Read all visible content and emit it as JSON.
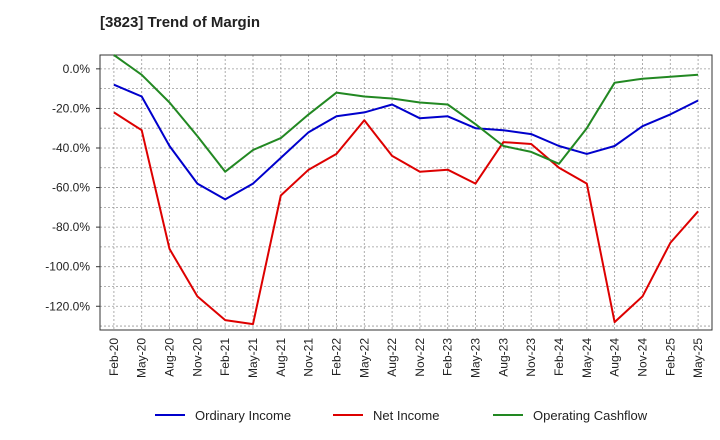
{
  "chart_data": {
    "type": "line",
    "title": "[3823]  Trend of Margin",
    "xlabel": "",
    "ylabel": "",
    "ylim": [
      -132,
      7
    ],
    "y_ticks": [
      0,
      -20,
      -40,
      -60,
      -80,
      -100,
      -120
    ],
    "y_tick_labels": [
      "0.0%",
      "-20.0%",
      "-40.0%",
      "-60.0%",
      "-80.0%",
      "-100.0%",
      "-120.0%"
    ],
    "x_tick_labels": [
      "Feb-20",
      "May-20",
      "Aug-20",
      "Nov-20",
      "Feb-21",
      "May-21",
      "Aug-21",
      "Nov-21",
      "Feb-22",
      "May-22",
      "Aug-22",
      "Nov-22",
      "Feb-23",
      "May-23",
      "Aug-23",
      "Nov-23",
      "Feb-24",
      "May-24",
      "Aug-24",
      "Nov-24",
      "Feb-25",
      "May-25"
    ],
    "grid": true,
    "legend": "bottom",
    "series": [
      {
        "name": "Ordinary Income",
        "color": "#0000cc",
        "values": [
          -8,
          -14,
          -39,
          -58,
          -66,
          -58,
          -45,
          -32,
          -24,
          -22,
          -18,
          -25,
          -24,
          -30,
          -31,
          -33,
          -39,
          -43,
          -39,
          -29,
          -23,
          -16
        ]
      },
      {
        "name": "Net Income",
        "color": "#dd0000",
        "values": [
          -22,
          -31,
          -91,
          -115,
          -127,
          -129,
          -64,
          -51,
          -43,
          -26,
          -44,
          -52,
          -51,
          -58,
          -37,
          -38,
          -50,
          -58,
          -128,
          -115,
          -88,
          -72
        ]
      },
      {
        "name": "Operating Cashflow",
        "color": "#228822",
        "values": [
          7,
          -3,
          -17,
          -34,
          -52,
          -41,
          -35,
          -23,
          -12,
          -14,
          -15,
          -17,
          -18,
          -28,
          -39,
          -42,
          -48,
          -30,
          -7,
          -5,
          -4,
          -3
        ]
      }
    ]
  }
}
